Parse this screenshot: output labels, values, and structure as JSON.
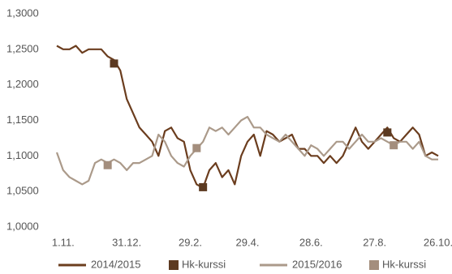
{
  "chart_data": {
    "type": "line",
    "categories": [
      null,
      "1.11.",
      null,
      null,
      null,
      null,
      null,
      null,
      null,
      null,
      null,
      "31.12.",
      null,
      null,
      null,
      null,
      null,
      null,
      null,
      null,
      null,
      "29.2.",
      null,
      null,
      null,
      null,
      null,
      null,
      null,
      null,
      "29.4.",
      null,
      null,
      null,
      null,
      null,
      null,
      null,
      null,
      null,
      "28.6.",
      null,
      null,
      null,
      null,
      null,
      null,
      null,
      null,
      null,
      "27.8.",
      null,
      null,
      null,
      null,
      null,
      null,
      null,
      null,
      null,
      "26.10."
    ],
    "ylim": [
      1.0,
      1.3
    ],
    "yticks": [
      {
        "value": 1.0,
        "label": "1,0000"
      },
      {
        "value": 1.05,
        "label": "1,0500"
      },
      {
        "value": 1.1,
        "label": "1,1000"
      },
      {
        "value": 1.15,
        "label": "1,1500"
      },
      {
        "value": 1.2,
        "label": "1,2000"
      },
      {
        "value": 1.25,
        "label": "1,2500"
      },
      {
        "value": 1.3,
        "label": "1,3000"
      }
    ],
    "grid": false,
    "legend": "bottom",
    "series": [
      {
        "name": "2014/2015",
        "color": "#6b3d1e",
        "marker": "line",
        "values": [
          1.255,
          1.25,
          1.25,
          1.255,
          1.245,
          1.25,
          1.25,
          1.25,
          1.24,
          1.235,
          1.22,
          1.18,
          1.16,
          1.14,
          1.13,
          1.12,
          1.1,
          1.135,
          1.14,
          1.125,
          1.12,
          1.08,
          1.06,
          1.055,
          1.08,
          1.09,
          1.07,
          1.08,
          1.06,
          1.1,
          1.12,
          1.13,
          1.1,
          1.135,
          1.13,
          1.12,
          1.125,
          1.13,
          1.11,
          1.11,
          1.1,
          1.1,
          1.09,
          1.1,
          1.09,
          1.1,
          1.12,
          1.14,
          1.12,
          1.11,
          1.12,
          1.13,
          1.14,
          1.125,
          1.12,
          1.13,
          1.14,
          1.13,
          1.1,
          1.105,
          1.1
        ]
      },
      {
        "name": "Hk-kurssi",
        "color": "#5c3a21",
        "marker": "square",
        "values": [
          null,
          null,
          null,
          null,
          null,
          null,
          null,
          null,
          null,
          1.23,
          null,
          null,
          null,
          null,
          null,
          null,
          null,
          null,
          null,
          null,
          null,
          null,
          null,
          1.056,
          null,
          null,
          null,
          null,
          null,
          null,
          null,
          null,
          null,
          null,
          null,
          null,
          null,
          null,
          null,
          null,
          null,
          null,
          null,
          null,
          null,
          null,
          null,
          null,
          null,
          null,
          null,
          null,
          1.133,
          null,
          null,
          null,
          null,
          null,
          null,
          null,
          null
        ]
      },
      {
        "name": "2015/2016",
        "color": "#ab9a8a",
        "marker": "line",
        "values": [
          1.105,
          1.08,
          1.07,
          1.065,
          1.06,
          1.065,
          1.09,
          1.095,
          1.09,
          1.095,
          1.09,
          1.08,
          1.09,
          1.09,
          1.095,
          1.1,
          1.13,
          1.12,
          1.1,
          1.09,
          1.085,
          1.1,
          1.11,
          1.12,
          1.14,
          1.135,
          1.14,
          1.13,
          1.14,
          1.15,
          1.155,
          1.14,
          1.14,
          1.13,
          1.125,
          1.12,
          1.13,
          1.12,
          1.11,
          1.1,
          1.115,
          1.11,
          1.1,
          1.11,
          1.12,
          1.12,
          1.11,
          1.12,
          1.13,
          1.12,
          1.12,
          1.125,
          1.12,
          1.115,
          1.12,
          1.12,
          1.11,
          1.12,
          1.1,
          1.095,
          1.095
        ]
      },
      {
        "name": "Hk-kurssi",
        "color": "#a48e7d",
        "marker": "square",
        "values": [
          null,
          null,
          null,
          null,
          null,
          null,
          null,
          null,
          1.087,
          null,
          null,
          null,
          null,
          null,
          null,
          null,
          null,
          null,
          null,
          null,
          null,
          null,
          1.111,
          null,
          null,
          null,
          null,
          null,
          null,
          null,
          null,
          null,
          null,
          null,
          null,
          null,
          null,
          null,
          null,
          null,
          null,
          null,
          null,
          null,
          null,
          null,
          null,
          null,
          null,
          null,
          null,
          null,
          null,
          1.115,
          null,
          null,
          null,
          null,
          null,
          null,
          null
        ]
      }
    ]
  }
}
